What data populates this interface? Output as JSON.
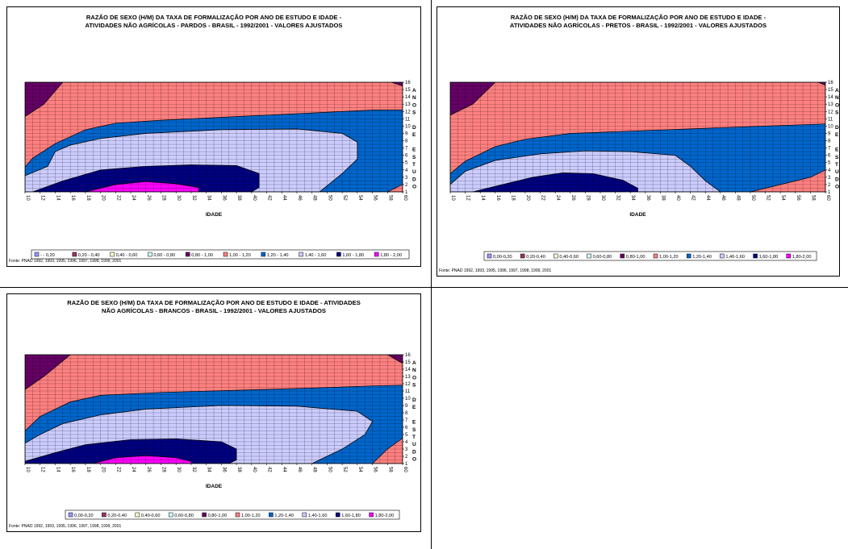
{
  "colors": {
    "c_000_020": "#9999ff",
    "c_020_040": "#993366",
    "c_040_060": "#ffffcc",
    "c_060_080": "#ccffff",
    "c_080_100": "#660066",
    "c_100_120": "#ff8080",
    "c_120_140": "#0066cc",
    "c_140_160": "#ccccff",
    "c_160_180": "#000080",
    "c_180_200": "#ff00ff"
  },
  "charts": [
    {
      "title": "RAZÃO DE SEXO (H/M) DA TAXA DE FORMALIZAÇÃO POR ANO DE ESTUDO E IDADE -\nATIVIDADES NÃO AGRÍCOLAS - PARDOS - BRASIL - 1992/2001 - VALORES AJUSTADOS",
      "source": "Fonte: PNAD 1992, 1993, 1995, 1996, 1997, 1998, 1999, 2001",
      "legend": [
        "- - 0,20",
        "0,20 - 0,40",
        "0,40 - 0,60",
        "0,60 - 0,80",
        "0,80 - 1,00",
        "1,00 - 1,20",
        "1,20 - 1,40",
        "1,40 - 1,60",
        "1,60 - 1,80",
        "1,80 - 2,00"
      ]
    },
    {
      "title": "RAZÃO DE SEXO (H/M) DA TAXA DE FORMALIZAÇÃO POR ANO DE ESTUDO E IDADE -\nATIVIDADES NÃO AGRÍCOLAS - PRETOS - BRASIL - 1992/2001 - VALORES AJUSTADOS",
      "source": "Fonte: PNAD 1992, 1993, 1995, 1996, 1997, 1998, 1999, 2001",
      "legend": [
        "0,00-0,20",
        "0,20-0,40",
        "0,40-0,60",
        "0,60-0,80",
        "0,80-1,00",
        "1,00-1,20",
        "1,20-1,40",
        "1,40-1,60",
        "1,60-1,80",
        "1,80-2,00"
      ]
    },
    {
      "title": "RAZÃO DE SEXO (H/M) DA TAXA DE FORMALIZAÇÃO POR ANO DE ESTUDO E IDADE - ATIVIDADES\nNÃO AGRÍCOLAS - BRANCOS - BRASIL - 1992/2001 - VALORES AJUSTADOS",
      "source": "Fonte: PNAD 1992, 1993, 1995, 1996, 1997, 1998, 1999, 2001",
      "legend": [
        "0,00-0,20",
        "0,20-0,40",
        "0,40-0,60",
        "0,60-0,80",
        "0,80-1,00",
        "1,00-1,20",
        "1,20-1,40",
        "1,40-1,60",
        "1,60-1,80",
        "1,80-2,00"
      ]
    }
  ],
  "chart_data": [
    {
      "type": "heatmap",
      "title": "RAZÃO DE SEXO (H/M) DA TAXA DE FORMALIZAÇÃO POR ANO DE ESTUDO E IDADE - ATIVIDADES NÃO AGRÍCOLAS - PARDOS - BRASIL - 1992/2001 - VALORES AJUSTADOS",
      "xlabel": "IDADE",
      "ylabel": "ANOS DE ESTUDO",
      "x_ticks": [
        10,
        12,
        14,
        16,
        18,
        20,
        22,
        24,
        26,
        28,
        30,
        32,
        34,
        36,
        38,
        40,
        42,
        44,
        46,
        48,
        50,
        52,
        54,
        56,
        58,
        60
      ],
      "y_ticks": [
        1,
        2,
        3,
        4,
        5,
        6,
        7,
        8,
        9,
        10,
        11,
        12,
        13,
        14,
        15,
        16
      ],
      "xlim": [
        10,
        60
      ],
      "ylim": [
        1,
        16
      ],
      "legend_position": "bottom",
      "bands": [
        "- - 0,20",
        "0,20 - 0,40",
        "0,40 - 0,60",
        "0,60 - 0,80",
        "0,80 - 1,00",
        "1,00 - 1,20",
        "1,20 - 1,40",
        "1,40 - 1,60",
        "1,60 - 1,80",
        "1,80 - 2,00"
      ],
      "regions": [
        {
          "band": "1,00 - 1,20",
          "polygon": [
            [
              10,
              1
            ],
            [
              60,
              1
            ],
            [
              60,
              16
            ],
            [
              10,
              16
            ]
          ]
        },
        {
          "band": "0,80 - 1,00",
          "polygon": [
            [
              10,
              16
            ],
            [
              10,
              11.3
            ],
            [
              12.5,
              13
            ],
            [
              15,
              16
            ]
          ]
        },
        {
          "band": "0,80 - 1,00",
          "polygon": [
            [
              58.5,
              16
            ],
            [
              60,
              15.5
            ],
            [
              60,
              16
            ]
          ]
        },
        {
          "band": "1,20 - 1,40",
          "polygon": [
            [
              10,
              4.4
            ],
            [
              11,
              5.6
            ],
            [
              14,
              7.6
            ],
            [
              18,
              9.5
            ],
            [
              22,
              10.4
            ],
            [
              28,
              10.8
            ],
            [
              38,
              11.3
            ],
            [
              48,
              11.8
            ],
            [
              56,
              12.2
            ],
            [
              60,
              12.2
            ],
            [
              60,
              2
            ],
            [
              58,
              1
            ],
            [
              49,
              1
            ],
            [
              52,
              3.5
            ],
            [
              54,
              5.5
            ],
            [
              54,
              7.8
            ],
            [
              52,
              9
            ],
            [
              46,
              9.6
            ],
            [
              36,
              9.5
            ],
            [
              26,
              9
            ],
            [
              20,
              8.3
            ],
            [
              16,
              7.4
            ],
            [
              14,
              6.5
            ],
            [
              13,
              4.5
            ],
            [
              10,
              3.2
            ]
          ]
        },
        {
          "band": "1,40 - 1,60",
          "polygon": [
            [
              10,
              3.2
            ],
            [
              13,
              4.5
            ],
            [
              14,
              6.5
            ],
            [
              16,
              7.4
            ],
            [
              20,
              8.3
            ],
            [
              26,
              9
            ],
            [
              36,
              9.5
            ],
            [
              46,
              9.6
            ],
            [
              52,
              9
            ],
            [
              54,
              7.8
            ],
            [
              54,
              5.5
            ],
            [
              52,
              3.5
            ],
            [
              49,
              1
            ],
            [
              10,
              1
            ]
          ]
        },
        {
          "band": "1,60 - 1,80",
          "polygon": [
            [
              11,
              1
            ],
            [
              15,
              2.5
            ],
            [
              20,
              4
            ],
            [
              26,
              4.5
            ],
            [
              32,
              4.7
            ],
            [
              38,
              4.6
            ],
            [
              41,
              3.5
            ],
            [
              41,
              1.6
            ],
            [
              40,
              1
            ]
          ]
        },
        {
          "band": "1,80 - 2,00",
          "polygon": [
            [
              18,
              1
            ],
            [
              22,
              2
            ],
            [
              26,
              2.4
            ],
            [
              30,
              2.1
            ],
            [
              33,
              1.6
            ],
            [
              33,
              1
            ]
          ]
        }
      ]
    },
    {
      "type": "heatmap",
      "title": "RAZÃO DE SEXO (H/M) DA TAXA DE FORMALIZAÇÃO POR ANO DE ESTUDO E IDADE - ATIVIDADES NÃO AGRÍCOLAS - PRETOS - BRASIL - 1992/2001 - VALORES AJUSTADOS",
      "xlabel": "IDADE",
      "ylabel": "ANOS DE ESTUDO",
      "x_ticks": [
        10,
        12,
        14,
        16,
        18,
        20,
        22,
        24,
        26,
        28,
        30,
        32,
        34,
        36,
        38,
        40,
        42,
        44,
        46,
        48,
        50,
        52,
        54,
        56,
        58,
        60
      ],
      "y_ticks": [
        1,
        2,
        3,
        4,
        5,
        6,
        7,
        8,
        9,
        10,
        11,
        12,
        13,
        14,
        15,
        16
      ],
      "xlim": [
        10,
        60
      ],
      "ylim": [
        1,
        16
      ],
      "legend_position": "bottom",
      "bands": [
        "0,00-0,20",
        "0,20-0,40",
        "0,40-0,60",
        "0,60-0,80",
        "0,80-1,00",
        "1,00-1,20",
        "1,20-1,40",
        "1,40-1,60",
        "1,60-1,80",
        "1,80-2,00"
      ],
      "regions": [
        {
          "band": "1,00-1,20",
          "polygon": [
            [
              10,
              1
            ],
            [
              60,
              1
            ],
            [
              60,
              16
            ],
            [
              10,
              16
            ]
          ]
        },
        {
          "band": "0,80-1,00",
          "polygon": [
            [
              10,
              16
            ],
            [
              10,
              11.5
            ],
            [
              13,
              13
            ],
            [
              16,
              16
            ]
          ]
        },
        {
          "band": "0,80-1,00",
          "polygon": [
            [
              59,
              16
            ],
            [
              60,
              15.6
            ],
            [
              60,
              16
            ]
          ]
        },
        {
          "band": "1,20-1,40",
          "polygon": [
            [
              10,
              3.5
            ],
            [
              12,
              5.2
            ],
            [
              16,
              7.2
            ],
            [
              20,
              8.2
            ],
            [
              26,
              9
            ],
            [
              34,
              9.3
            ],
            [
              44,
              9.7
            ],
            [
              52,
              10
            ],
            [
              60,
              10.3
            ],
            [
              60,
              4
            ],
            [
              58,
              3
            ],
            [
              52,
              1.5
            ],
            [
              50,
              1
            ],
            [
              46,
              1
            ],
            [
              44,
              2.5
            ],
            [
              42,
              4.5
            ],
            [
              40,
              6
            ],
            [
              34,
              6.5
            ],
            [
              28,
              6.6
            ],
            [
              22,
              6.2
            ],
            [
              16,
              5.3
            ],
            [
              12,
              3.8
            ],
            [
              10,
              2
            ]
          ]
        },
        {
          "band": "1,40-1,60",
          "polygon": [
            [
              10,
              2
            ],
            [
              12,
              3.8
            ],
            [
              16,
              5.3
            ],
            [
              22,
              6.2
            ],
            [
              28,
              6.6
            ],
            [
              34,
              6.5
            ],
            [
              40,
              6
            ],
            [
              42,
              4.5
            ],
            [
              44,
              2.5
            ],
            [
              46,
              1
            ],
            [
              10,
              1
            ]
          ]
        },
        {
          "band": "1,60-1,80",
          "polygon": [
            [
              13,
              1
            ],
            [
              17,
              2
            ],
            [
              21,
              3
            ],
            [
              25,
              3.6
            ],
            [
              29,
              3.5
            ],
            [
              33,
              2.6
            ],
            [
              35,
              1.5
            ],
            [
              35,
              1
            ]
          ]
        }
      ]
    },
    {
      "type": "heatmap",
      "title": "RAZÃO DE SEXO (H/M) DA TAXA DE FORMALIZAÇÃO POR ANO DE ESTUDO E IDADE - ATIVIDADES NÃO AGRÍCOLAS - BRANCOS - BRASIL - 1992/2001 - VALORES AJUSTADOS",
      "xlabel": "IDADE",
      "ylabel": "ANOS DE ESTUDO",
      "x_ticks": [
        10,
        12,
        14,
        16,
        18,
        20,
        22,
        24,
        26,
        28,
        30,
        32,
        34,
        36,
        38,
        40,
        42,
        44,
        46,
        48,
        50,
        52,
        54,
        56,
        58,
        60
      ],
      "y_ticks": [
        1,
        2,
        3,
        4,
        5,
        6,
        7,
        8,
        9,
        10,
        11,
        12,
        13,
        14,
        15,
        16
      ],
      "xlim": [
        10,
        60
      ],
      "ylim": [
        1,
        16
      ],
      "legend_position": "bottom",
      "bands": [
        "0,00-0,20",
        "0,20-0,40",
        "0,40-0,60",
        "0,60-0,80",
        "0,80-1,00",
        "1,00-1,20",
        "1,20-1,40",
        "1,40-1,60",
        "1,60-1,80",
        "1,80-2,00"
      ],
      "regions": [
        {
          "band": "1,00-1,20",
          "polygon": [
            [
              10,
              1
            ],
            [
              60,
              1
            ],
            [
              60,
              16
            ],
            [
              10,
              16
            ]
          ]
        },
        {
          "band": "0,80-1,00",
          "polygon": [
            [
              10,
              16
            ],
            [
              10,
              11.2
            ],
            [
              12.5,
              13
            ],
            [
              16,
              16
            ]
          ]
        },
        {
          "band": "0,80-1,00",
          "polygon": [
            [
              58,
              16
            ],
            [
              60,
              14.8
            ],
            [
              60,
              16
            ]
          ]
        },
        {
          "band": "1,20-1,40",
          "polygon": [
            [
              10,
              5.5
            ],
            [
              12,
              7.5
            ],
            [
              16,
              9.5
            ],
            [
              20,
              10.4
            ],
            [
              28,
              10.8
            ],
            [
              38,
              11.1
            ],
            [
              48,
              11.4
            ],
            [
              56,
              11.7
            ],
            [
              60,
              11.8
            ],
            [
              60,
              4.5
            ],
            [
              58,
              3
            ],
            [
              56,
              1
            ],
            [
              48,
              1
            ],
            [
              52,
              3
            ],
            [
              55,
              5
            ],
            [
              56,
              6.8
            ],
            [
              54,
              8.2
            ],
            [
              46,
              8.9
            ],
            [
              36,
              9
            ],
            [
              26,
              8.5
            ],
            [
              20,
              7.7
            ],
            [
              15,
              6.5
            ],
            [
              12,
              5
            ],
            [
              10,
              3.8
            ]
          ]
        },
        {
          "band": "1,40-1,60",
          "polygon": [
            [
              10,
              3.8
            ],
            [
              12,
              5
            ],
            [
              15,
              6.5
            ],
            [
              20,
              7.7
            ],
            [
              26,
              8.5
            ],
            [
              36,
              9
            ],
            [
              46,
              8.9
            ],
            [
              54,
              8.2
            ],
            [
              56,
              6.8
            ],
            [
              55,
              5
            ],
            [
              52,
              3
            ],
            [
              48,
              1
            ],
            [
              10,
              1
            ]
          ]
        },
        {
          "band": "1,60-1,80",
          "polygon": [
            [
              10,
              1.3
            ],
            [
              14,
              2.5
            ],
            [
              18,
              3.6
            ],
            [
              24,
              4.3
            ],
            [
              30,
              4.4
            ],
            [
              36,
              4
            ],
            [
              38,
              3
            ],
            [
              38,
              1.5
            ],
            [
              37,
              1
            ],
            [
              10,
              1
            ]
          ]
        },
        {
          "band": "1,80-2,00",
          "polygon": [
            [
              19,
              1
            ],
            [
              22,
              1.8
            ],
            [
              26,
              2.1
            ],
            [
              30,
              1.8
            ],
            [
              32,
              1.3
            ],
            [
              32,
              1
            ]
          ]
        }
      ]
    }
  ]
}
